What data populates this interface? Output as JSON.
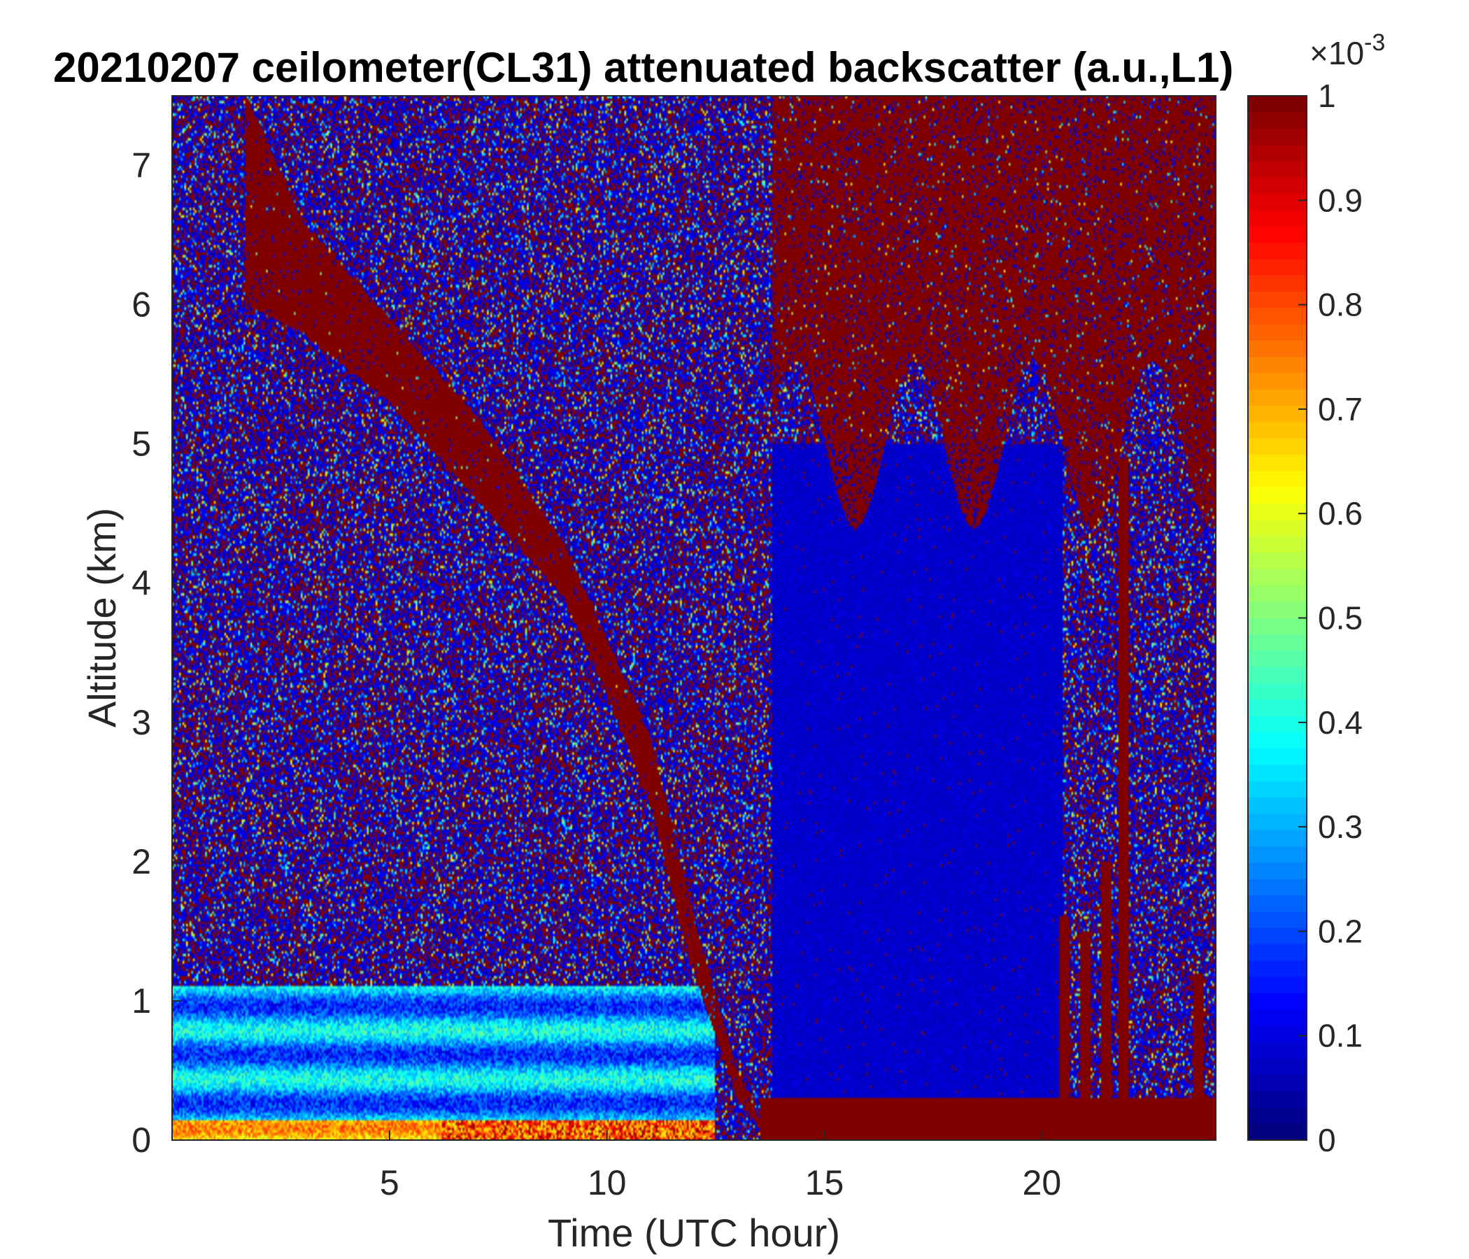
{
  "chart_data": {
    "type": "heatmap",
    "title": "20210207 ceilometer(CL31) attenuated backscatter (a.u.,L1)",
    "xlabel": "Time (UTC hour)",
    "ylabel": "Altitude (km)",
    "xlim": [
      0,
      24
    ],
    "ylim": [
      0,
      7.5
    ],
    "x_ticks": [
      "5",
      "10",
      "15",
      "20"
    ],
    "y_ticks": [
      "0",
      "1",
      "2",
      "3",
      "4",
      "5",
      "6",
      "7"
    ],
    "colorbar": {
      "colormap": "jet",
      "clim": [
        0,
        1
      ],
      "ticks": [
        "0",
        "0.1",
        "0.2",
        "0.3",
        "0.4",
        "0.5",
        "0.6",
        "0.7",
        "0.8",
        "0.9",
        "1"
      ],
      "exponent_base": "×10",
      "exponent_power": "-3"
    },
    "features": {
      "cloud_layer_descending": {
        "time": [
          1.7,
          3,
          5,
          7,
          9,
          10,
          11,
          12,
          13,
          13.6
        ],
        "top_km": [
          7.5,
          6.6,
          5.9,
          5.2,
          4.3,
          3.6,
          2.9,
          1.6,
          0.5,
          0.1
        ],
        "base_km": [
          6.0,
          5.8,
          5.3,
          4.6,
          3.9,
          3.2,
          2.4,
          1.2,
          0.3,
          0.05
        ]
      },
      "upper_cloud_mass": {
        "time_start": 13.8,
        "time_end": 24,
        "base_km": 5.0,
        "top_km": 7.5
      },
      "clear_region": {
        "time_start": 13.8,
        "time_end": 20.5,
        "base_km": 0.3,
        "top_km": 5.0
      },
      "surface_layer": {
        "time_start": 13.5,
        "time_end": 24,
        "top_km": 0.3
      },
      "aerosol_boundary_layer": {
        "time_start": 0,
        "time_end": 12.5,
        "top_km": 1.1
      },
      "evening_spikes_time": [
        20.5,
        21.0,
        21.5,
        21.9,
        23.6
      ]
    }
  }
}
